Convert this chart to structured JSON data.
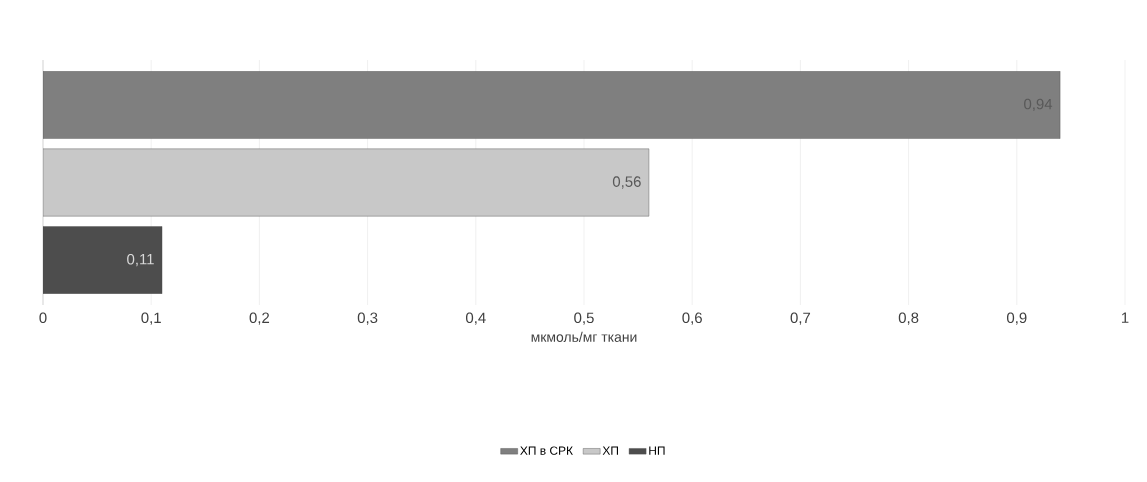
{
  "chart_data": {
    "type": "bar",
    "orientation": "horizontal",
    "categories": [
      null
    ],
    "series": [
      {
        "name": "ХП в СРК",
        "color": "#7f7f7f",
        "values": [
          0.94
        ],
        "value_labels": [
          "0,94"
        ]
      },
      {
        "name": "ХП",
        "color": "#c8c8c8",
        "values": [
          0.56
        ],
        "value_labels": [
          "0,56"
        ]
      },
      {
        "name": "НП",
        "color": "#4d4d4d",
        "values": [
          0.11
        ],
        "value_labels": [
          "0,11"
        ]
      }
    ],
    "xlabel": "мкмоль/мг ткани",
    "xlim": [
      0,
      1
    ],
    "xticks": [
      0,
      {
        "value": 0.1,
        "label": "0,1"
      },
      {
        "value": 0.2,
        "label": "0,2"
      },
      {
        "value": 0.3,
        "label": "0,3"
      },
      {
        "value": 0.4,
        "label": "0,4"
      },
      {
        "value": 0.5,
        "label": "0,5"
      },
      {
        "value": 0.6,
        "label": "0,6"
      },
      {
        "value": 0.7,
        "label": "0,7"
      },
      {
        "value": 0.8,
        "label": "0,8"
      },
      {
        "value": 0.9,
        "label": "0,9"
      },
      1
    ],
    "grid": "x",
    "legend": "bottom"
  }
}
